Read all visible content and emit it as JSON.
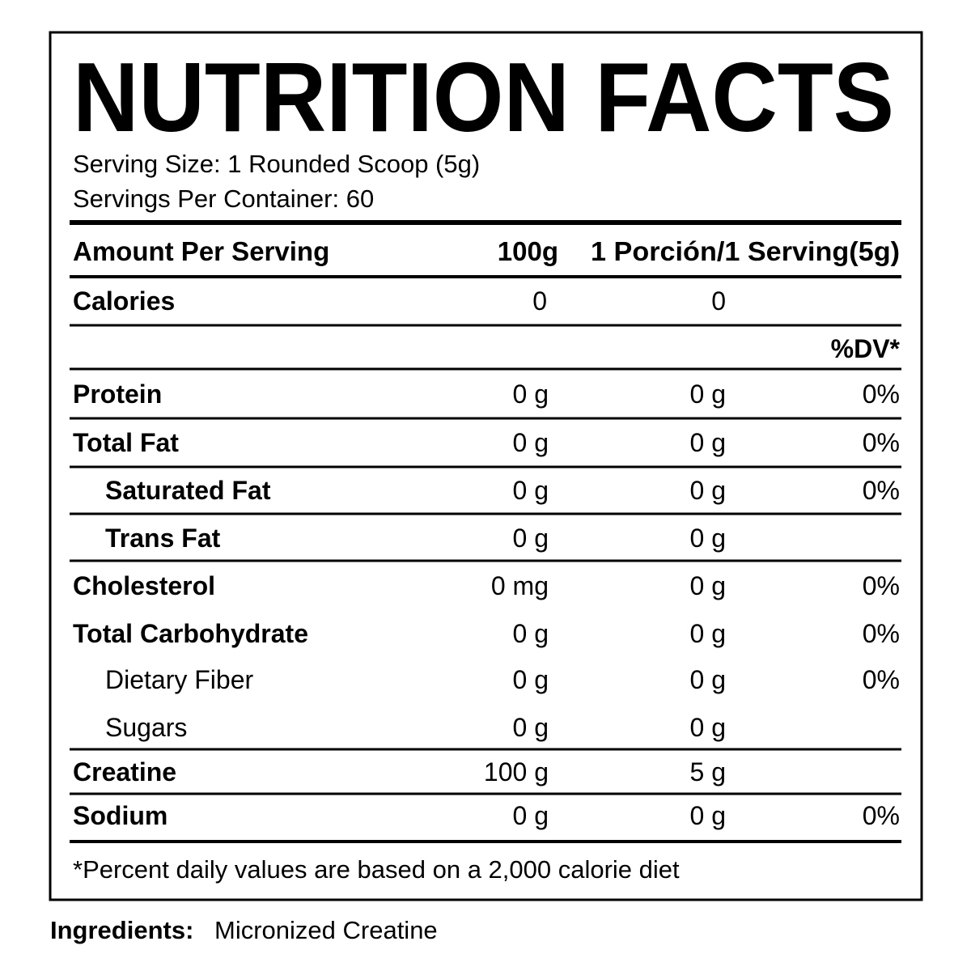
{
  "title": "NUTRITION FACTS",
  "serving_size": "Serving Size: 1 Rounded Scoop (5g)",
  "servings_per_container": "Servings Per Container: 60",
  "header": [
    "Amount Per Serving",
    "100g",
    "1 Porción/1 Serving(5g)"
  ],
  "calories": [
    "Calories",
    "0",
    "0"
  ],
  "dv_header": "%DV*",
  "rows": [
    {
      "name": "Protein",
      "per_100g": "0 g",
      "per_serving": "0 g",
      "dv": "0%",
      "bold": true,
      "divider": true
    },
    {
      "name": "Total Fat",
      "per_100g": "0 g",
      "per_serving": "0 g",
      "dv": "0%",
      "bold": true,
      "divider": true
    },
    {
      "name": "Saturated Fat",
      "per_100g": "0 g",
      "per_serving": "0 g",
      "dv": "0%",
      "bold": true,
      "indent": true,
      "divider": true
    },
    {
      "name": "Trans Fat",
      "per_100g": "0 g",
      "per_serving": "0 g",
      "bold": true,
      "indent": true,
      "divider": true
    },
    {
      "name": "Cholesterol",
      "per_100g": "0 mg",
      "per_serving": "0 g",
      "dv": "0%",
      "bold": true
    },
    {
      "name": "Total Carbohydrate",
      "per_100g": "0 g",
      "per_serving": "0 g",
      "dv": "0%",
      "bold": true
    },
    {
      "name": "Dietary Fiber",
      "per_100g": "0 g",
      "per_serving": "0 g",
      "dv": "0%",
      "indent": true
    },
    {
      "name": "Sugars",
      "per_100g": "0 g",
      "per_serving": "0 g",
      "indent": true,
      "divider": true
    },
    {
      "name": "Creatine",
      "per_100g": "100 g",
      "per_serving": "5 g",
      "bold": true,
      "divider": true
    },
    {
      "name": "Sodium",
      "per_100g": "0 g",
      "per_serving": "0 g",
      "dv": "0%",
      "bold": true,
      "divider": true
    }
  ],
  "footnote": "*Percent daily values are based on a 2,000 calorie diet",
  "ingredients_label": "Ingredients:",
  "ingredients": "Micronized Creatine"
}
